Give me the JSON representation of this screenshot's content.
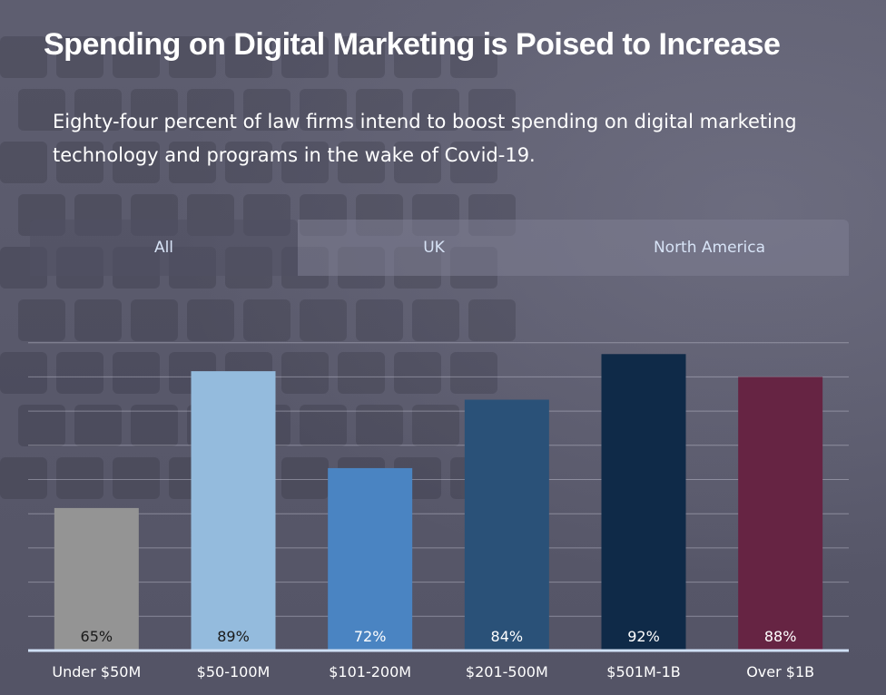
{
  "header": {
    "title": "Spending on Digital Marketing is Poised to Increase",
    "subtitle": "Eighty-four percent of law firms intend to boost spending on digital marketing technology and programs in the wake of Covid-19."
  },
  "tabs": [
    {
      "label": "All",
      "active": true
    },
    {
      "label": "UK",
      "active": false
    },
    {
      "label": "North America",
      "active": false
    }
  ],
  "chart_data": {
    "type": "bar",
    "categories": [
      "Under $50M",
      "$50-100M",
      "$101-200M",
      "$201-500M",
      "$501M-1B",
      "Over $1B"
    ],
    "values": [
      65,
      89,
      72,
      84,
      92,
      88
    ],
    "value_labels": [
      "65%",
      "89%",
      "72%",
      "84%",
      "92%",
      "88%"
    ],
    "colors": [
      "#949494",
      "#94bbdd",
      "#4a84c2",
      "#2a5178",
      "#0f2a48",
      "#662443"
    ],
    "label_colors": [
      "#1a1a1a",
      "#1a1a1a",
      "#ffffff",
      "#ffffff",
      "#ffffff",
      "#ffffff"
    ],
    "ylim": [
      40,
      100
    ],
    "grid": true
  }
}
